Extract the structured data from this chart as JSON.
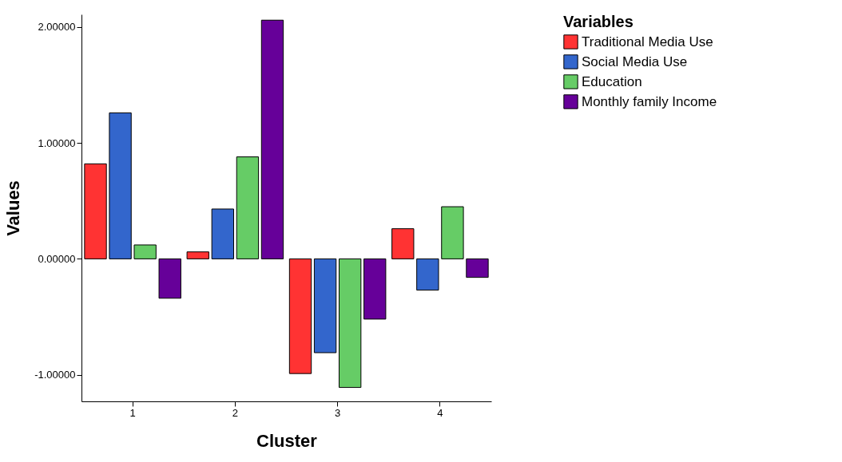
{
  "chart_data": {
    "type": "bar",
    "xlabel": "Cluster",
    "ylabel": "Values",
    "legend_title": "Variables",
    "legend": "top right",
    "grid": false,
    "categories": [
      "1",
      "2",
      "3",
      "4"
    ],
    "series": [
      {
        "name": "Traditional Media Use",
        "color": "#ff3333",
        "values": [
          0.82,
          0.06,
          -0.99,
          0.26
        ]
      },
      {
        "name": "Social Media Use",
        "color": "#3366cc",
        "values": [
          1.26,
          0.43,
          -0.81,
          -0.27
        ]
      },
      {
        "name": "Education",
        "color": "#66cc66",
        "values": [
          0.12,
          0.88,
          -1.11,
          0.45
        ]
      },
      {
        "name": "Monthly family Income",
        "color": "#660099",
        "values": [
          -0.34,
          2.06,
          -0.52,
          -0.16
        ]
      }
    ],
    "ylim": [
      -1.23,
      2.11
    ],
    "yticks": [
      {
        "value": -1,
        "label": "-1.00000"
      },
      {
        "value": 0,
        "label": "0.00000"
      },
      {
        "value": 1,
        "label": "1.00000"
      },
      {
        "value": 2,
        "label": "2.00000"
      }
    ]
  }
}
